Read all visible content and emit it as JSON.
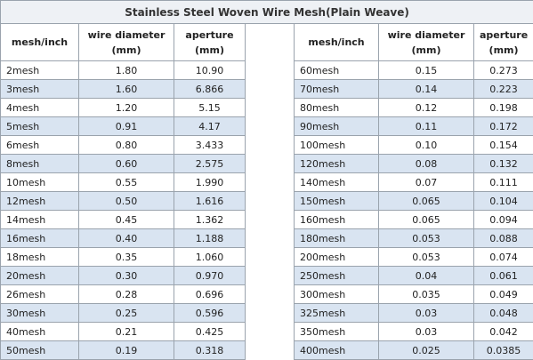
{
  "title": "Stainless Steel Woven Wire Mesh(Plain Weave)",
  "left": {
    "headers": [
      [
        "mesh/inch"
      ],
      [
        "wire diameter",
        "(mm)"
      ],
      [
        "aperture",
        "(mm)"
      ]
    ],
    "rows": [
      [
        "2mesh",
        "1.80",
        "10.90"
      ],
      [
        "3mesh",
        "1.60",
        "6.866"
      ],
      [
        "4mesh",
        "1.20",
        "5.15"
      ],
      [
        "5mesh",
        "0.91",
        "4.17"
      ],
      [
        "6mesh",
        "0.80",
        "3.433"
      ],
      [
        "8mesh",
        "0.60",
        "2.575"
      ],
      [
        "10mesh",
        "0.55",
        "1.990"
      ],
      [
        "12mesh",
        "0.50",
        "1.616"
      ],
      [
        "14mesh",
        "0.45",
        "1.362"
      ],
      [
        "16mesh",
        "0.40",
        "1.188"
      ],
      [
        "18mesh",
        "0.35",
        "1.060"
      ],
      [
        "20mesh",
        "0.30",
        "0.970"
      ],
      [
        "26mesh",
        "0.28",
        "0.696"
      ],
      [
        "30mesh",
        "0.25",
        "0.596"
      ],
      [
        "40mesh",
        "0.21",
        "0.425"
      ],
      [
        "50mesh",
        "0.19",
        "0.318"
      ]
    ]
  },
  "right": {
    "headers": [
      [
        "mesh/inch"
      ],
      [
        "wire diameter",
        "(mm)"
      ],
      [
        "aperture",
        "(mm)"
      ]
    ],
    "rows": [
      [
        "60mesh",
        "0.15",
        "0.273"
      ],
      [
        "70mesh",
        "0.14",
        "0.223"
      ],
      [
        "80mesh",
        "0.12",
        "0.198"
      ],
      [
        "90mesh",
        "0.11",
        "0.172"
      ],
      [
        "100mesh",
        "0.10",
        "0.154"
      ],
      [
        "120mesh",
        "0.08",
        "0.132"
      ],
      [
        "140mesh",
        "0.07",
        "0.111"
      ],
      [
        "150mesh",
        "0.065",
        "0.104"
      ],
      [
        "160mesh",
        "0.065",
        "0.094"
      ],
      [
        "180mesh",
        "0.053",
        "0.088"
      ],
      [
        "200mesh",
        "0.053",
        "0.074"
      ],
      [
        "250mesh",
        "0.04",
        "0.061"
      ],
      [
        "300mesh",
        "0.035",
        "0.049"
      ],
      [
        "325mesh",
        "0.03",
        "0.048"
      ],
      [
        "350mesh",
        "0.03",
        "0.042"
      ],
      [
        "400mesh",
        "0.025",
        "0.0385"
      ]
    ]
  }
}
